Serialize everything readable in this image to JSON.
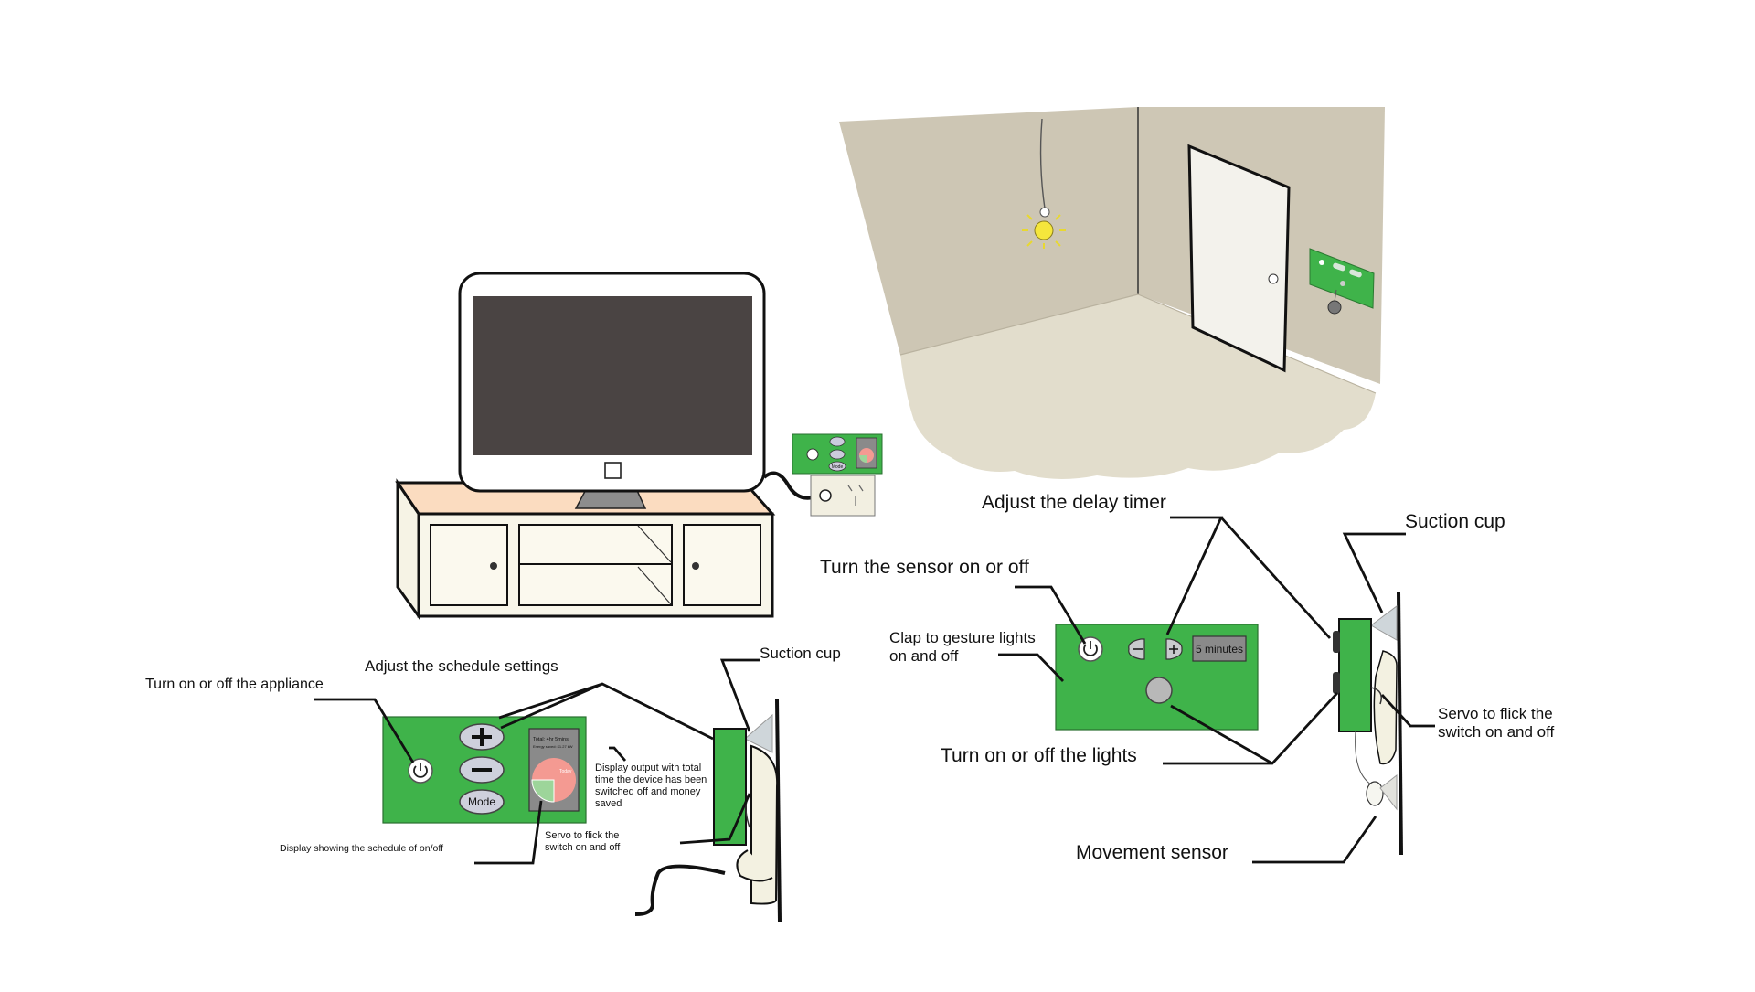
{
  "tv_socket_panel": {
    "mode_label": "Mode"
  },
  "schedule_device": {
    "mode_label": "Mode",
    "display_header": "Total: 4hr 5mins",
    "display_subheader": "Energy saved: $1.27 kW",
    "pie_label": "Today"
  },
  "sensor_device": {
    "timer_value": "5 minutes"
  },
  "callouts_left": {
    "turn_on_off_appliance": "Turn on or off the appliance",
    "adjust_schedule": "Adjust the schedule settings",
    "suction_cup": "Suction cup",
    "display_output": "Display output with total time the device has been switched off and money saved",
    "display_schedule": "Display showing the schedule of on/off",
    "servo": "Servo to flick the switch on and off"
  },
  "callouts_right": {
    "adjust_delay": "Adjust the delay timer",
    "sensor_on_off": "Turn the sensor on or off",
    "clap_gesture": "Clap to gesture lights on and off",
    "suction_cup": "Suction cup",
    "servo": "Servo to flick the switch on and off",
    "lights_on_off": "Turn on or off the lights",
    "movement_sensor": "Movement sensor"
  },
  "colors": {
    "device_green": "#3fb34a",
    "wall": "#cdc6b4",
    "floor": "#e2ddcc",
    "screen": "#4a4443",
    "pie_red": "#f49a92",
    "pie_green": "#9dd59a",
    "bulb": "#f5e63c"
  }
}
